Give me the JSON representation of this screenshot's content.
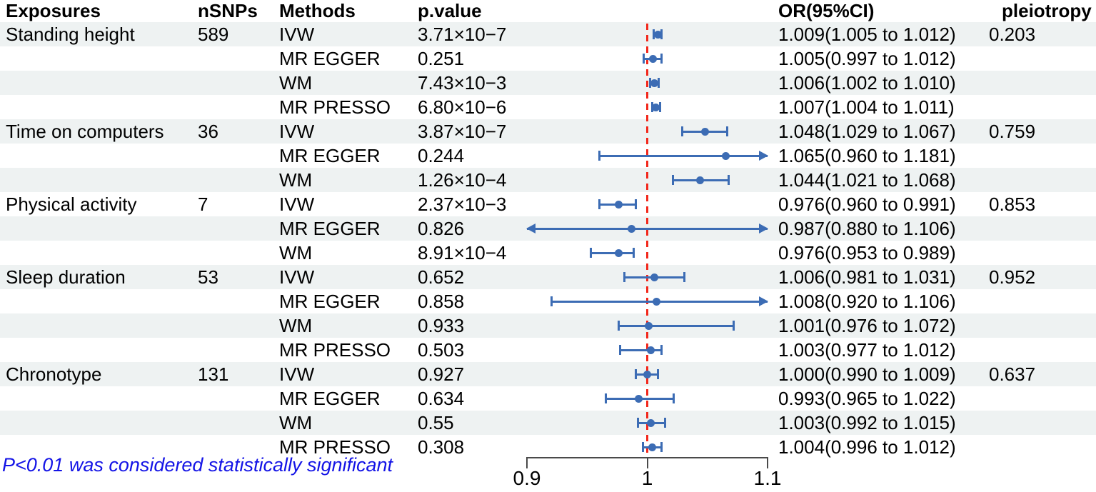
{
  "header": {
    "exposures": "Exposures",
    "nsnps": "nSNPs",
    "methods": "Methods",
    "pvalue": "p.value",
    "or_ci": "OR(95%CI)",
    "pleiotropy": "pleiotropy"
  },
  "footnote": "P<0.01 was considered statistically significant",
  "colors": {
    "accent_blue": "#3c6cb4",
    "ref_line_red": "#f2281c",
    "row_stripe": "#eef2f2",
    "footnote_blue": "#1414e6",
    "axis_gray": "#4a4a4a"
  },
  "chart_data": {
    "type": "forest",
    "xlabel": "",
    "ylabel": "",
    "axis": {
      "xlim": [
        0.9,
        1.1
      ],
      "ticks": [
        0.9,
        1.0,
        1.1
      ],
      "tick_labels": [
        "0.9",
        "1",
        "1.1"
      ],
      "ref_line": 1.0
    },
    "rows": [
      {
        "exposure": "Standing height",
        "nsnps": "589",
        "method": "IVW",
        "pvalue": "3.71×10−7",
        "or": 1.009,
        "lo": 1.005,
        "hi": 1.012,
        "or_ci": "1.009(1.005 to 1.012)",
        "pleiotropy": "0.203"
      },
      {
        "exposure": "",
        "nsnps": "",
        "method": "MR EGGER",
        "pvalue": "0.251",
        "or": 1.005,
        "lo": 0.997,
        "hi": 1.012,
        "or_ci": "1.005(0.997 to 1.012)",
        "pleiotropy": ""
      },
      {
        "exposure": "",
        "nsnps": "",
        "method": "WM",
        "pvalue": "7.43×10−3",
        "or": 1.006,
        "lo": 1.002,
        "hi": 1.01,
        "or_ci": "1.006(1.002 to 1.010)",
        "pleiotropy": ""
      },
      {
        "exposure": "",
        "nsnps": "",
        "method": "MR PRESSO",
        "pvalue": "6.80×10−6",
        "or": 1.007,
        "lo": 1.004,
        "hi": 1.011,
        "or_ci": "1.007(1.004 to 1.011)",
        "pleiotropy": ""
      },
      {
        "exposure": "Time on computers",
        "nsnps": "36",
        "method": "IVW",
        "pvalue": "3.87×10−7",
        "or": 1.048,
        "lo": 1.029,
        "hi": 1.067,
        "or_ci": "1.048(1.029 to 1.067)",
        "pleiotropy": "0.759"
      },
      {
        "exposure": "",
        "nsnps": "",
        "method": "MR EGGER",
        "pvalue": "0.244",
        "or": 1.065,
        "lo": 0.96,
        "hi": 1.181,
        "or_ci": "1.065(0.960 to 1.181)",
        "pleiotropy": ""
      },
      {
        "exposure": "",
        "nsnps": "",
        "method": "WM",
        "pvalue": "1.26×10−4",
        "or": 1.044,
        "lo": 1.021,
        "hi": 1.068,
        "or_ci": "1.044(1.021 to 1.068)",
        "pleiotropy": ""
      },
      {
        "exposure": "Physical activity",
        "nsnps": "7",
        "method": "IVW",
        "pvalue": "2.37×10−3",
        "or": 0.976,
        "lo": 0.96,
        "hi": 0.991,
        "or_ci": "0.976(0.960 to 0.991)",
        "pleiotropy": "0.853"
      },
      {
        "exposure": "",
        "nsnps": "",
        "method": "MR EGGER",
        "pvalue": "0.826",
        "or": 0.987,
        "lo": 0.88,
        "hi": 1.106,
        "or_ci": "0.987(0.880 to 1.106)",
        "pleiotropy": ""
      },
      {
        "exposure": "",
        "nsnps": "",
        "method": "WM",
        "pvalue": "8.91×10−4",
        "or": 0.976,
        "lo": 0.953,
        "hi": 0.989,
        "or_ci": "0.976(0.953 to 0.989)",
        "pleiotropy": ""
      },
      {
        "exposure": "Sleep duration",
        "nsnps": "53",
        "method": "IVW",
        "pvalue": "0.652",
        "or": 1.006,
        "lo": 0.981,
        "hi": 1.031,
        "or_ci": "1.006(0.981 to 1.031)",
        "pleiotropy": "0.952"
      },
      {
        "exposure": "",
        "nsnps": "",
        "method": "MR EGGER",
        "pvalue": "0.858",
        "or": 1.008,
        "lo": 0.92,
        "hi": 1.106,
        "or_ci": "1.008(0.920 to 1.106)",
        "pleiotropy": ""
      },
      {
        "exposure": "",
        "nsnps": "",
        "method": "WM",
        "pvalue": "0.933",
        "or": 1.001,
        "lo": 0.976,
        "hi": 1.072,
        "or_ci": "1.001(0.976 to 1.072)",
        "pleiotropy": ""
      },
      {
        "exposure": "",
        "nsnps": "",
        "method": "MR PRESSO",
        "pvalue": "0.503",
        "or": 1.003,
        "lo": 0.977,
        "hi": 1.012,
        "or_ci": "1.003(0.977 to 1.012)",
        "pleiotropy": ""
      },
      {
        "exposure": "Chronotype",
        "nsnps": "131",
        "method": "IVW",
        "pvalue": "0.927",
        "or": 1.0,
        "lo": 0.99,
        "hi": 1.009,
        "or_ci": "1.000(0.990 to 1.009)",
        "pleiotropy": "0.637"
      },
      {
        "exposure": "",
        "nsnps": "",
        "method": "MR EGGER",
        "pvalue": "0.634",
        "or": 0.993,
        "lo": 0.965,
        "hi": 1.022,
        "or_ci": "0.993(0.965 to 1.022)",
        "pleiotropy": ""
      },
      {
        "exposure": "",
        "nsnps": "",
        "method": "WM",
        "pvalue": "0.55",
        "or": 1.003,
        "lo": 0.992,
        "hi": 1.015,
        "or_ci": "1.003(0.992 to 1.015)",
        "pleiotropy": ""
      },
      {
        "exposure": "",
        "nsnps": "",
        "method": "MR PRESSO",
        "pvalue": "0.308",
        "or": 1.004,
        "lo": 0.996,
        "hi": 1.012,
        "or_ci": "1.004(0.996 to 1.012)",
        "pleiotropy": ""
      }
    ]
  }
}
